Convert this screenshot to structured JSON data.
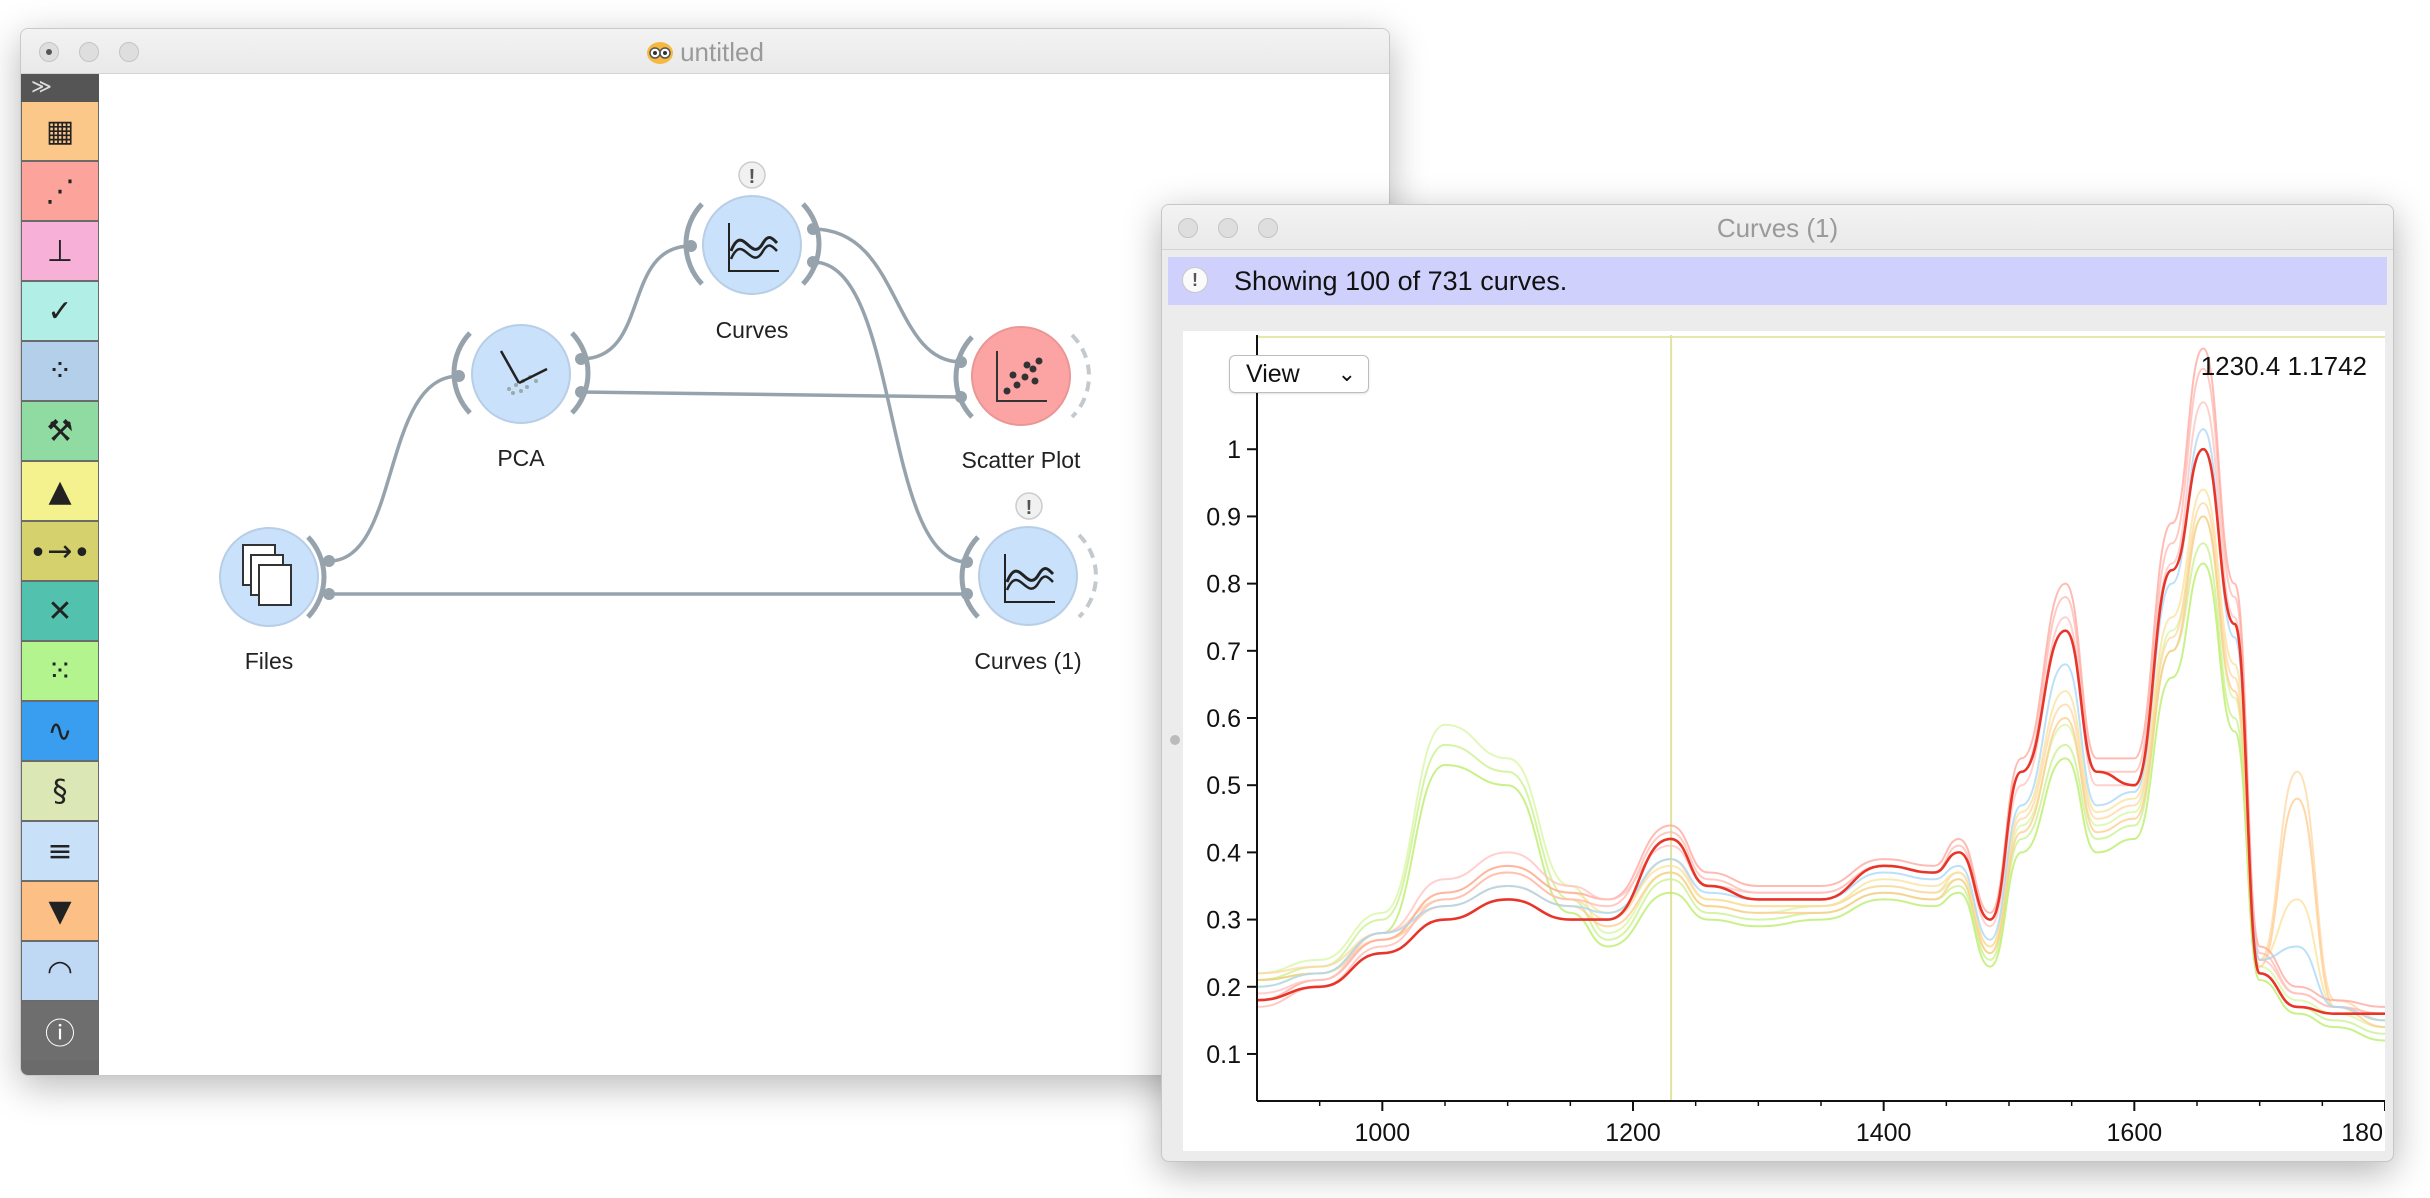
{
  "canvas_window": {
    "title": "untitled",
    "toolbox": {
      "collapse_glyph": "≫",
      "categories": [
        {
          "name": "data",
          "color": "#fcc88a"
        },
        {
          "name": "visualize",
          "color": "#fca39c"
        },
        {
          "name": "model",
          "color": "#f7b1d9"
        },
        {
          "name": "evaluate",
          "color": "#b0eee6"
        },
        {
          "name": "unsupervised",
          "color": "#b3cfe9"
        },
        {
          "name": "educational",
          "color": "#8fdba2"
        },
        {
          "name": "image-analytics",
          "color": "#f3f28f"
        },
        {
          "name": "timeseries",
          "color": "#d5d26d"
        },
        {
          "name": "network",
          "color": "#52c2ae"
        },
        {
          "name": "geo",
          "color": "#b3f48e"
        },
        {
          "name": "spectroscopy",
          "color": "#3a9ef0"
        },
        {
          "name": "bioinformatics",
          "color": "#dbe8b5"
        },
        {
          "name": "text-mining",
          "color": "#c8e1f8"
        },
        {
          "name": "education",
          "color": "#fcc086"
        },
        {
          "name": "signal",
          "color": "#bfd9f5"
        },
        {
          "name": "info",
          "color": "#6e6e6e"
        }
      ]
    },
    "nodes": [
      {
        "id": "files",
        "label": "Files",
        "color": "#c9e1fa",
        "icon": "files-icon"
      },
      {
        "id": "pca",
        "label": "PCA",
        "color": "#c9e1fa",
        "icon": "pca-icon"
      },
      {
        "id": "curves",
        "label": "Curves",
        "color": "#c9e1fa",
        "icon": "curves-icon"
      },
      {
        "id": "scatter",
        "label": "Scatter Plot",
        "color": "#fca4a4",
        "icon": "scatter-icon"
      },
      {
        "id": "curves1",
        "label": "Curves (1)",
        "color": "#c9e1fa",
        "icon": "curves-icon"
      }
    ],
    "warning_glyph": "!"
  },
  "curves_window": {
    "title": "Curves (1)",
    "info_message": "Showing 100 of 731 curves.",
    "view_button": "View",
    "cursor_readout": "1230.4 1.1742"
  },
  "chart_data": {
    "type": "line",
    "title": "",
    "xlabel": "",
    "ylabel": "",
    "xlim": [
      900,
      1800
    ],
    "ylim": [
      0.03,
      1.17
    ],
    "x_ticks": [
      "1000",
      "1200",
      "1400",
      "1600",
      "180"
    ],
    "y_ticks": [
      "0.1",
      "0.2",
      "0.3",
      "0.4",
      "0.5",
      "0.6",
      "0.7",
      "0.8",
      "0.9",
      "1"
    ],
    "cursor_x": 1230.4,
    "grid": false,
    "x": [
      900,
      950,
      1000,
      1050,
      1100,
      1150,
      1180,
      1230,
      1260,
      1300,
      1350,
      1400,
      1440,
      1460,
      1485,
      1510,
      1545,
      1570,
      1600,
      1630,
      1655,
      1680,
      1700,
      1730,
      1760,
      1800
    ],
    "series": [
      {
        "color": "#c8f08a",
        "values": [
          0.21,
          0.23,
          0.3,
          0.56,
          0.52,
          0.33,
          0.27,
          0.36,
          0.31,
          0.3,
          0.31,
          0.34,
          0.33,
          0.35,
          0.24,
          0.42,
          0.56,
          0.42,
          0.44,
          0.7,
          0.86,
          0.6,
          0.22,
          0.17,
          0.15,
          0.13
        ]
      },
      {
        "color": "#b7ec62",
        "values": [
          0.21,
          0.22,
          0.28,
          0.53,
          0.5,
          0.31,
          0.26,
          0.34,
          0.3,
          0.29,
          0.3,
          0.33,
          0.32,
          0.34,
          0.23,
          0.4,
          0.54,
          0.4,
          0.42,
          0.66,
          0.83,
          0.58,
          0.21,
          0.16,
          0.14,
          0.12
        ]
      },
      {
        "color": "#d8f5a0",
        "values": [
          0.22,
          0.24,
          0.31,
          0.59,
          0.54,
          0.35,
          0.28,
          0.37,
          0.32,
          0.31,
          0.32,
          0.35,
          0.34,
          0.36,
          0.25,
          0.44,
          0.59,
          0.44,
          0.46,
          0.73,
          0.9,
          0.63,
          0.23,
          0.18,
          0.16,
          0.14
        ]
      },
      {
        "color": "#ffd6a0",
        "values": [
          0.22,
          0.23,
          0.28,
          0.33,
          0.37,
          0.33,
          0.3,
          0.39,
          0.33,
          0.32,
          0.32,
          0.35,
          0.34,
          0.37,
          0.26,
          0.45,
          0.62,
          0.45,
          0.47,
          0.72,
          0.92,
          0.66,
          0.24,
          0.52,
          0.18,
          0.15
        ]
      },
      {
        "color": "#ffc98a",
        "values": [
          0.21,
          0.22,
          0.27,
          0.32,
          0.35,
          0.32,
          0.29,
          0.37,
          0.32,
          0.31,
          0.31,
          0.34,
          0.33,
          0.36,
          0.25,
          0.43,
          0.6,
          0.43,
          0.45,
          0.7,
          0.9,
          0.64,
          0.23,
          0.48,
          0.17,
          0.14
        ]
      },
      {
        "color": "#f9e29a",
        "values": [
          0.2,
          0.22,
          0.27,
          0.34,
          0.38,
          0.34,
          0.31,
          0.38,
          0.33,
          0.32,
          0.32,
          0.36,
          0.35,
          0.37,
          0.26,
          0.46,
          0.64,
          0.46,
          0.48,
          0.75,
          0.94,
          0.68,
          0.24,
          0.33,
          0.17,
          0.15
        ]
      },
      {
        "color": "#ffb8b0",
        "values": [
          0.17,
          0.2,
          0.26,
          0.33,
          0.37,
          0.33,
          0.32,
          0.43,
          0.36,
          0.34,
          0.34,
          0.38,
          0.37,
          0.41,
          0.3,
          0.52,
          0.78,
          0.52,
          0.52,
          0.86,
          1.12,
          0.78,
          0.25,
          0.19,
          0.17,
          0.16
        ]
      },
      {
        "color": "#ffa49a",
        "values": [
          0.18,
          0.21,
          0.27,
          0.34,
          0.38,
          0.34,
          0.33,
          0.44,
          0.37,
          0.35,
          0.35,
          0.39,
          0.38,
          0.42,
          0.31,
          0.54,
          0.8,
          0.54,
          0.54,
          0.89,
          1.15,
          0.8,
          0.26,
          0.2,
          0.18,
          0.17
        ]
      },
      {
        "color": "#ffc2bd",
        "values": [
          0.19,
          0.21,
          0.28,
          0.36,
          0.4,
          0.35,
          0.33,
          0.41,
          0.35,
          0.34,
          0.34,
          0.38,
          0.37,
          0.4,
          0.29,
          0.5,
          0.75,
          0.5,
          0.5,
          0.83,
          1.07,
          0.75,
          0.24,
          0.19,
          0.17,
          0.16
        ]
      },
      {
        "color": "#a6d6f5",
        "values": [
          0.2,
          0.22,
          0.28,
          0.32,
          0.35,
          0.32,
          0.31,
          0.39,
          0.34,
          0.33,
          0.33,
          0.37,
          0.36,
          0.38,
          0.27,
          0.47,
          0.68,
          0.47,
          0.49,
          0.8,
          1.03,
          0.72,
          0.24,
          0.26,
          0.17,
          0.15
        ]
      },
      {
        "color": "#e8352a",
        "values": [
          0.18,
          0.2,
          0.25,
          0.3,
          0.33,
          0.3,
          0.3,
          0.42,
          0.35,
          0.33,
          0.33,
          0.38,
          0.37,
          0.4,
          0.3,
          0.52,
          0.73,
          0.52,
          0.5,
          0.82,
          1.0,
          0.74,
          0.22,
          0.17,
          0.16,
          0.16
        ]
      }
    ]
  }
}
